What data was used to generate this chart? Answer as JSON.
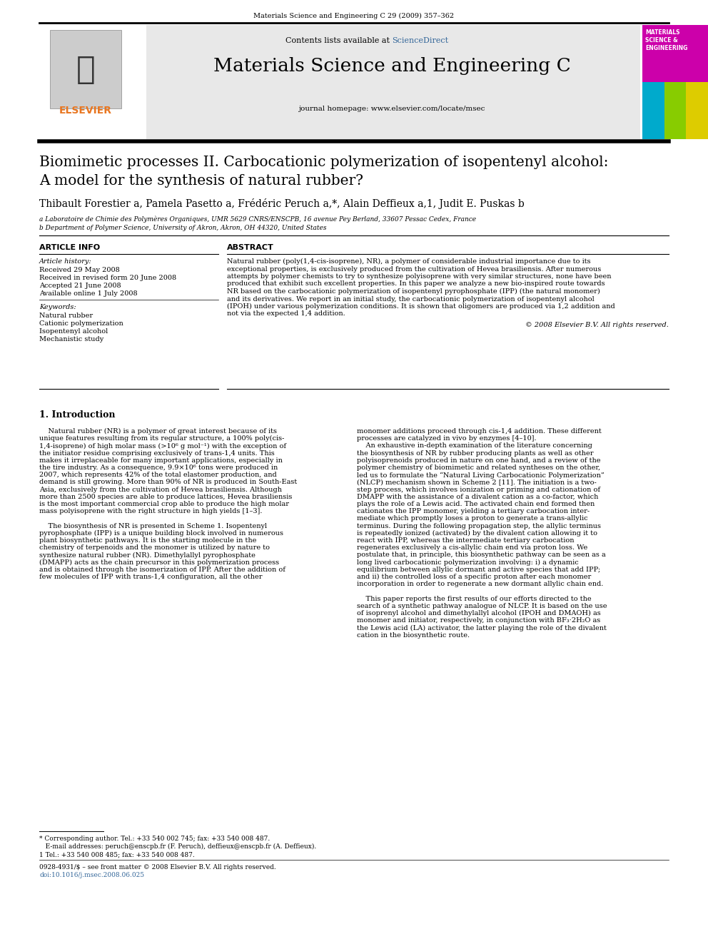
{
  "page_bg": "#ffffff",
  "top_journal_ref": "Materials Science and Engineering C 29 (2009) 357–362",
  "journal_name": "Materials Science and Engineering C",
  "journal_url": "journal homepage: www.elsevier.com/locate/msec",
  "header_bg": "#e8e8e8",
  "paper_title_line1": "Biomimetic processes II. Carbocationic polymerization of isopentenyl alcohol:",
  "paper_title_line2": "A model for the synthesis of natural rubber?",
  "authors_line": "Thibault Forestier a, Pamela Pasetto a, Frédéric Peruch a,*, Alain Deffieux a,1, Judit E. Puskas b",
  "affil_a": "a Laboratoire de Chimie des Polymères Organiques, UMR 5629 CNRS/ENSCPB, 16 avenue Pey Berland, 33607 Pessac Cedex, France",
  "affil_b": "b Department of Polymer Science, University of Akron, Akron, OH 44320, United States",
  "article_info_title": "ARTICLE INFO",
  "abstract_title": "ABSTRACT",
  "article_history_label": "Article history:",
  "received": "Received 29 May 2008",
  "received_revised": "Received in revised form 20 June 2008",
  "accepted": "Accepted 21 June 2008",
  "available": "Available online 1 July 2008",
  "keywords_label": "Keywords:",
  "keywords": [
    "Natural rubber",
    "Cationic polymerization",
    "Isopentenyl alcohol",
    "Mechanistic study"
  ],
  "abstract_lines": [
    "Natural rubber (poly(1,4-cis-isoprene), NR), a polymer of considerable industrial importance due to its",
    "exceptional properties, is exclusively produced from the cultivation of Hevea brasiliensis. After numerous",
    "attempts by polymer chemists to try to synthesize polyisoprene with very similar structures, none have been",
    "produced that exhibit such excellent properties. In this paper we analyze a new bio-inspired route towards",
    "NR based on the carbocationic polymerization of isopentenyl pyrophosphate (IPP) (the natural monomer)",
    "and its derivatives. We report in an initial study, the carbocationic polymerization of isopentenyl alcohol",
    "(IPOH) under various polymerization conditions. It is shown that oligomers are produced via 1,2 addition and",
    "not via the expected 1,4 addition."
  ],
  "copyright": "© 2008 Elsevier B.V. All rights reserved.",
  "intro_title": "1. Introduction",
  "intro_left_lines": [
    "    Natural rubber (NR) is a polymer of great interest because of its",
    "unique features resulting from its regular structure, a 100% poly(cis-",
    "1,4-isoprene) of high molar mass (>10⁶ g mol⁻¹) with the exception of",
    "the initiator residue comprising exclusively of trans-1,4 units. This",
    "makes it irreplaceable for many important applications, especially in",
    "the tire industry. As a consequence, 9.9×10⁶ tons were produced in",
    "2007, which represents 42% of the total elastomer production, and",
    "demand is still growing. More than 90% of NR is produced in South-East",
    "Asia, exclusively from the cultivation of Hevea brasiliensis. Although",
    "more than 2500 species are able to produce lattices, Hevea brasiliensis",
    "is the most important commercial crop able to produce the high molar",
    "mass polyisoprene with the right structure in high yields [1–3].",
    "",
    "    The biosynthesis of NR is presented in Scheme 1. Isopentenyl",
    "pyrophosphate (IPP) is a unique building block involved in numerous",
    "plant biosynthetic pathways. It is the starting molecule in the",
    "chemistry of terpenoids and the monomer is utilized by nature to",
    "synthesize natural rubber (NR). Dimethylallyl pyrophosphate",
    "(DMAPP) acts as the chain precursor in this polymerization process",
    "and is obtained through the isomerization of IPP. After the addition of",
    "few molecules of IPP with trans-1,4 configuration, all the other"
  ],
  "intro_right_lines": [
    "monomer additions proceed through cis-1,4 addition. These different",
    "processes are catalyzed in vivo by enzymes [4–10].",
    "    An exhaustive in-depth examination of the literature concerning",
    "the biosynthesis of NR by rubber producing plants as well as other",
    "polyisoprenoids produced in nature on one hand, and a review of the",
    "polymer chemistry of biomimetic and related syntheses on the other,",
    "led us to formulate the “Natural Living Carbocationic Polymerization”",
    "(NLCP) mechanism shown in Scheme 2 [11]. The initiation is a two-",
    "step process, which involves ionization or priming and cationation of",
    "DMAPP with the assistance of a divalent cation as a co-factor, which",
    "plays the role of a Lewis acid. The activated chain end formed then",
    "cationates the IPP monomer, yielding a tertiary carbocation inter-",
    "mediate which promptly loses a proton to generate a trans-allylic",
    "terminus. During the following propagation step, the allylic terminus",
    "is repeatedly ionized (activated) by the divalent cation allowing it to",
    "react with IPP, whereas the intermediate tertiary carbocation",
    "regenerates exclusively a cis-allylic chain end via proton loss. We",
    "postulate that, in principle, this biosynthetic pathway can be seen as a",
    "long lived carbocationic polymerization involving: i) a dynamic",
    "equilibrium between allylic dormant and active species that add IPP;",
    "and ii) the controlled loss of a specific proton after each monomer",
    "incorporation in order to regenerate a new dormant allylic chain end.",
    "",
    "    This paper reports the first results of our efforts directed to the",
    "search of a synthetic pathway analogue of NLCP. It is based on the use",
    "of isoprenyl alcohol and dimethylallyl alcohol (IPOH and DMAOH) as",
    "monomer and initiator, respectively, in conjunction with BF₃·2H₂O as",
    "the Lewis acid (LA) activator, the latter playing the role of the divalent",
    "cation in the biosynthetic route."
  ],
  "footnote_star": "* Corresponding author. Tel.: +33 540 002 745; fax: +33 540 008 487.",
  "footnote_email": "   E-mail addresses: peruch@enscpb.fr (F. Peruch), deffieux@enscpb.fr (A. Deffieux).",
  "footnote_1": "1 Tel.: +33 540 008 485; fax: +33 540 008 487.",
  "issn_line": "0928-4931/$ – see front matter © 2008 Elsevier B.V. All rights reserved.",
  "doi_line": "doi:10.1016/j.msec.2008.06.025",
  "elsevier_color": "#e87722",
  "sciencedirect_color": "#336699",
  "cover_magenta": "#cc00aa",
  "cover_cyan": "#00aacc",
  "cover_yellow": "#ddcc00",
  "cover_green": "#88cc00"
}
